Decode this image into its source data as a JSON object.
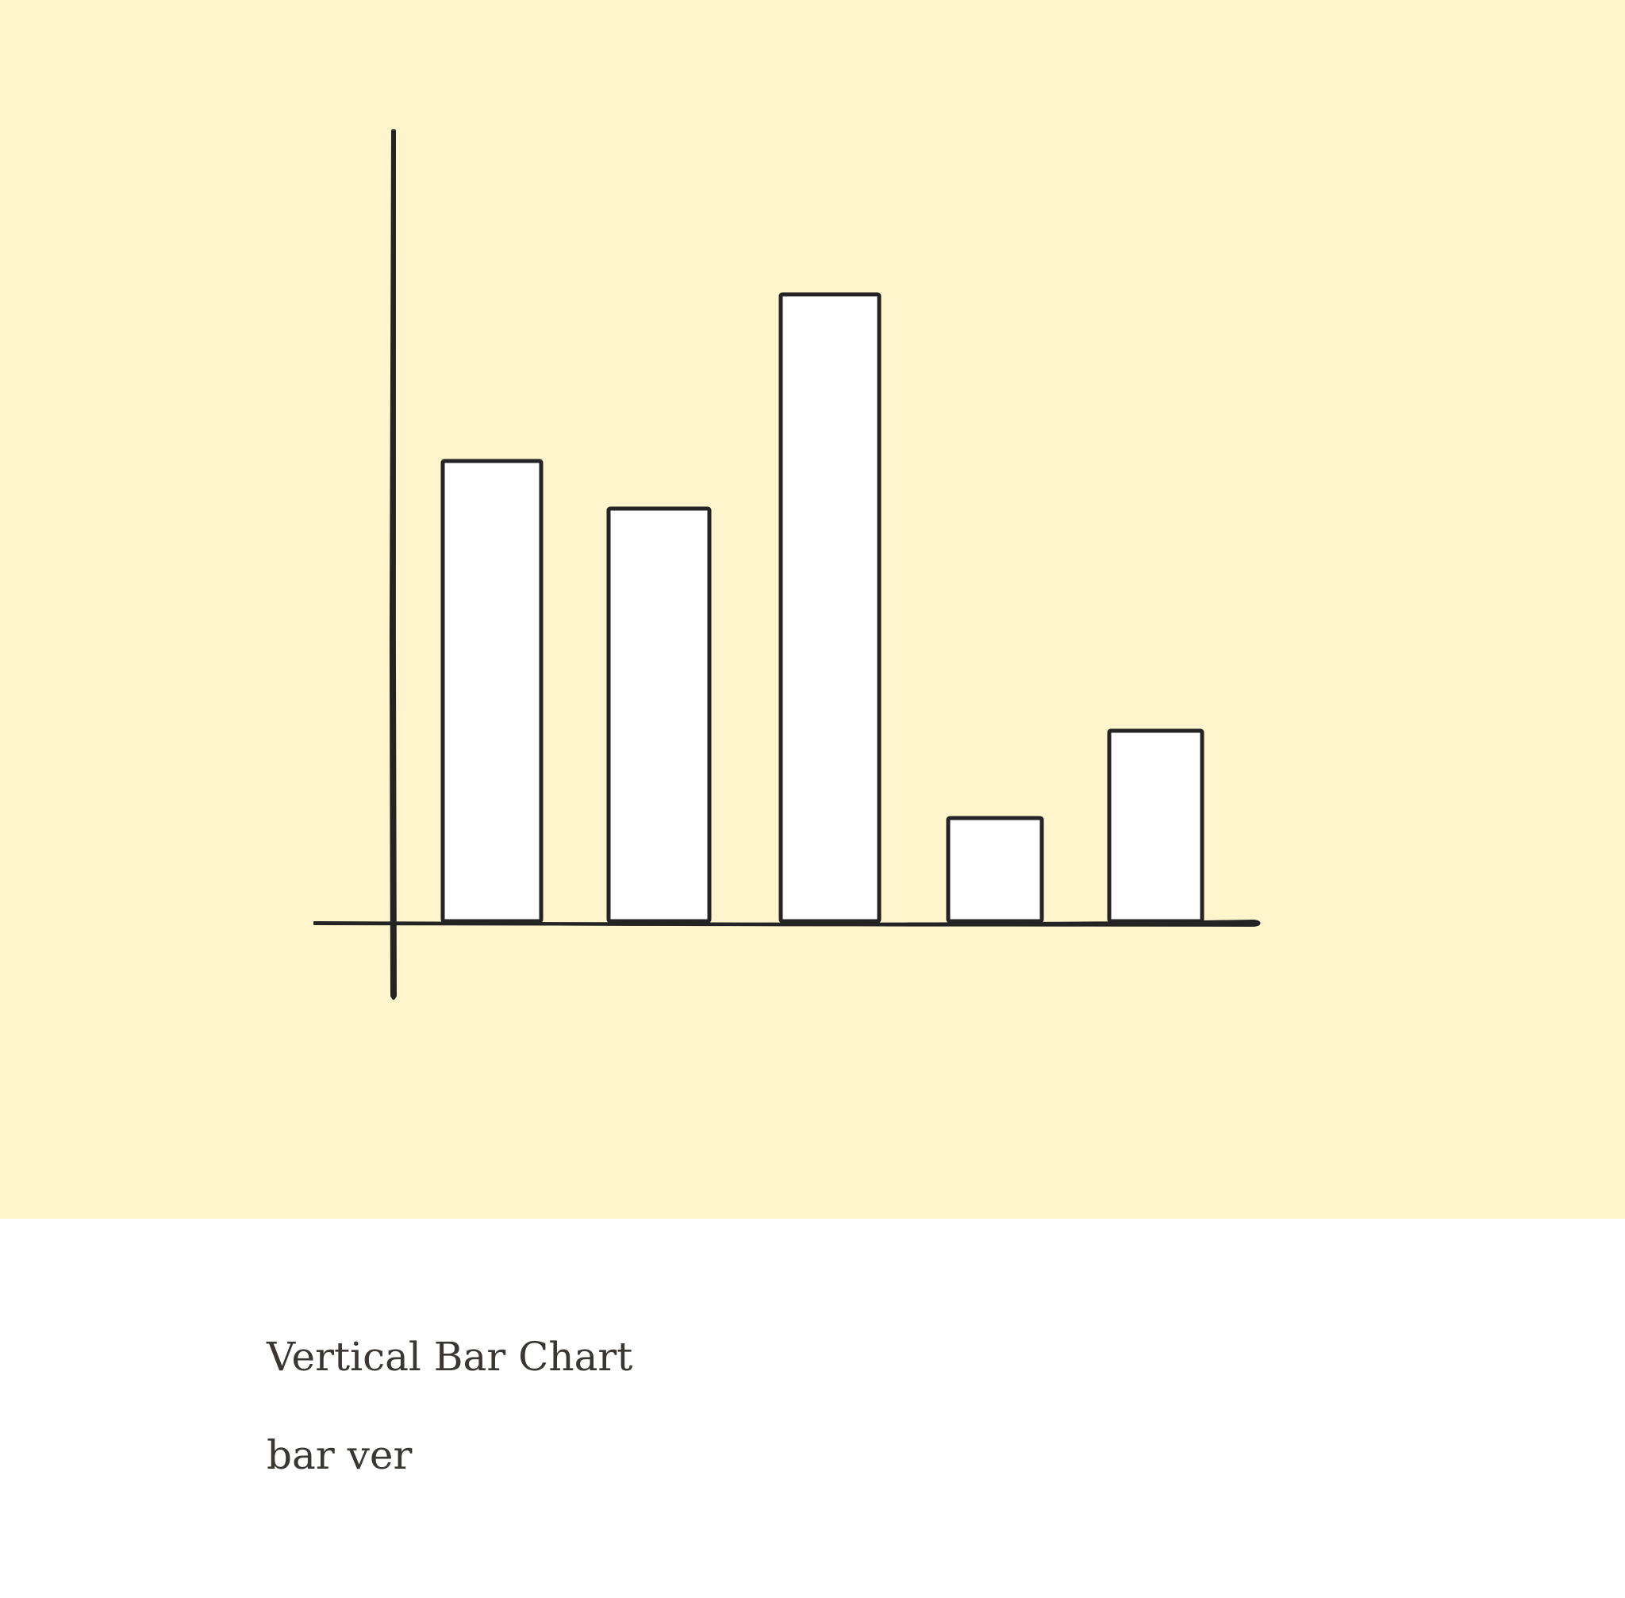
{
  "caption": {
    "title": "Vertical Bar Chart",
    "tag": "bar ver"
  },
  "illustration": {
    "background_color": "#fef5cd",
    "stroke_color": "#242424",
    "bar_fill_color": "#ffffff",
    "bar_heights": [
      0.58,
      0.52,
      0.79,
      0.13,
      0.24
    ]
  }
}
